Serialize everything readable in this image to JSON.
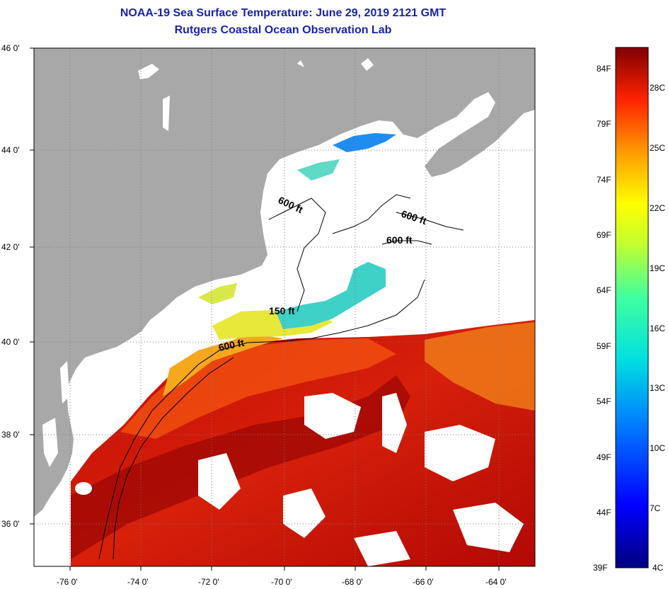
{
  "header": {
    "title": "NOAA-19 Sea Surface Temperature:  June 29, 2019 2121 GMT",
    "subtitle": "Rutgers Coastal Ocean Observation Lab"
  },
  "map": {
    "lon_range": [
      -77,
      -63
    ],
    "lat_range": [
      35,
      46
    ],
    "lat_ticks": [
      "36 0'",
      "38 0'",
      "40 0'",
      "42 0'",
      "44 0'",
      "46 0'"
    ],
    "lon_ticks": [
      "-76 0'",
      "-74 0'",
      "-72 0'",
      "-70 0'",
      "-68 0'",
      "-66 0'",
      "-64 0'"
    ],
    "contours": [
      "600 ft",
      "600 ft",
      "600 ft",
      "150 ft",
      "600 ft"
    ],
    "colors": {
      "land": "#a8a8a8",
      "cloud": "#ffffff",
      "gulf_stream": "#b30a05",
      "slope_water": "#ea3d0a",
      "shelf_warm": "#f5a018",
      "shelf_cool": "#e6e63a",
      "cold_pool": "#3fd0c7"
    }
  },
  "colorbar": {
    "fahrenheit": [
      "84F",
      "79F",
      "74F",
      "69F",
      "64F",
      "59F",
      "54F",
      "49F",
      "44F",
      "39F"
    ],
    "celsius": [
      "28C",
      "25C",
      "22C",
      "19C",
      "16C",
      "13C",
      "10C",
      "7C",
      "4C"
    ]
  }
}
